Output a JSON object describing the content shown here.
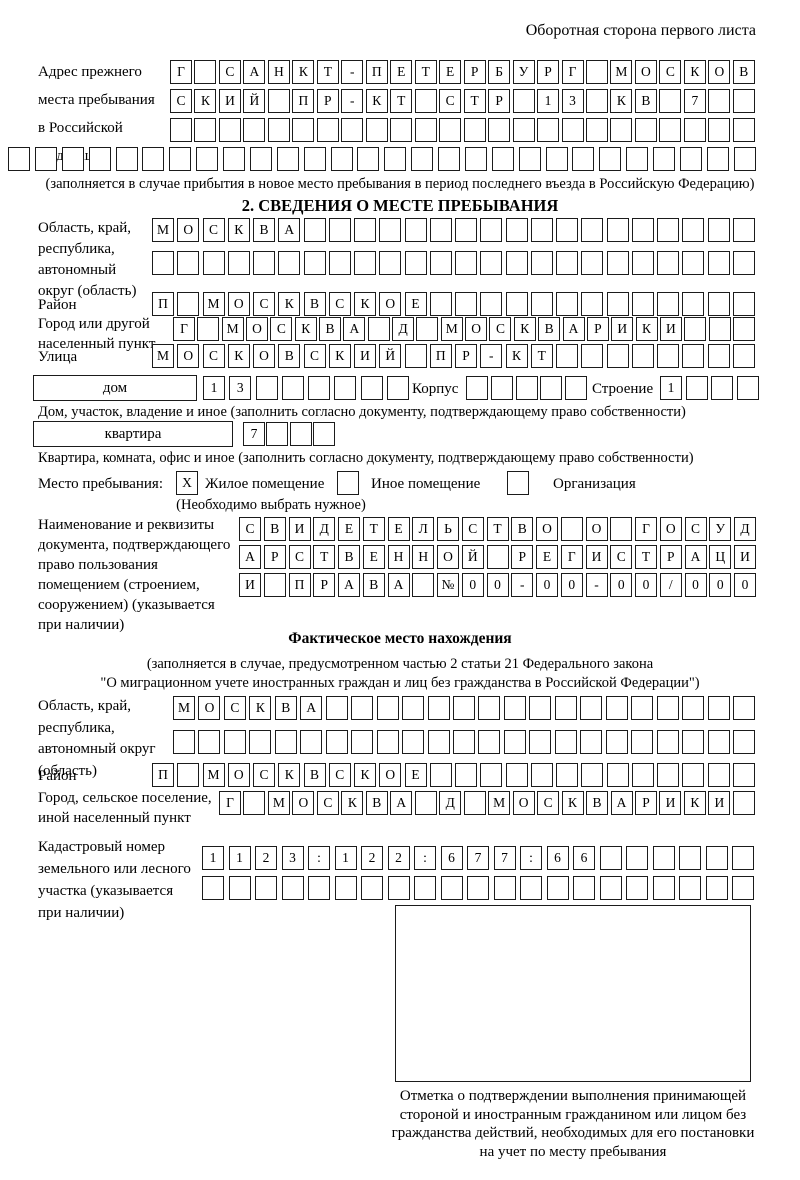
{
  "page_title": "Оборотная сторона первого листа",
  "prev_address": {
    "label_lines": [
      "Адрес прежнего",
      "места пребывания",
      "в Российской",
      "Федерации"
    ],
    "rows": [
      [
        "Г",
        "",
        "С",
        "А",
        "Н",
        "К",
        "Т",
        "-",
        "П",
        "Е",
        "Т",
        "Е",
        "Р",
        "Б",
        "У",
        "Р",
        "Г",
        "",
        "М",
        "О",
        "С",
        "К",
        "О",
        "В"
      ],
      [
        "С",
        "К",
        "И",
        "Й",
        "",
        "П",
        "Р",
        "-",
        "К",
        "Т",
        "",
        "С",
        "Т",
        "Р",
        "",
        "1",
        "3",
        "",
        "К",
        "В",
        "",
        "7",
        "",
        ""
      ],
      [
        "",
        "",
        "",
        "",
        "",
        "",
        "",
        "",
        "",
        "",
        "",
        "",
        "",
        "",
        "",
        "",
        "",
        "",
        "",
        "",
        "",
        "",
        "",
        ""
      ],
      [
        "",
        "",
        "",
        "",
        "",
        "",
        "",
        "",
        "",
        "",
        "",
        "",
        "",
        "",
        "",
        "",
        "",
        "",
        "",
        "",
        "",
        "",
        "",
        "",
        "",
        "",
        "",
        ""
      ]
    ],
    "note": "(заполняется в случае прибытия в новое место пребывания в период последнего въезда в Российскую Федерацию)"
  },
  "section2": {
    "title": "2. СВЕДЕНИЯ О МЕСТЕ ПРЕБЫВАНИЯ",
    "region": {
      "label_lines": [
        "Область, край,",
        "республика,",
        "автономный",
        "округ (область)"
      ],
      "rows": [
        [
          "М",
          "О",
          "С",
          "К",
          "В",
          "А",
          "",
          "",
          "",
          "",
          "",
          "",
          "",
          "",
          "",
          "",
          "",
          "",
          "",
          "",
          "",
          "",
          "",
          ""
        ],
        [
          "",
          "",
          "",
          "",
          "",
          "",
          "",
          "",
          "",
          "",
          "",
          "",
          "",
          "",
          "",
          "",
          "",
          "",
          "",
          "",
          "",
          "",
          "",
          ""
        ]
      ]
    },
    "district": {
      "label": "Район",
      "row": [
        "П",
        "",
        "М",
        "О",
        "С",
        "К",
        "В",
        "С",
        "К",
        "О",
        "Е",
        "",
        "",
        "",
        "",
        "",
        "",
        "",
        "",
        "",
        "",
        "",
        "",
        ""
      ]
    },
    "city": {
      "label_lines": [
        "Город или другой",
        "населенный пункт"
      ],
      "row": [
        "Г",
        "",
        "М",
        "О",
        "С",
        "К",
        "В",
        "А",
        "",
        "Д",
        "",
        "М",
        "О",
        "С",
        "К",
        "В",
        "А",
        "Р",
        "И",
        "К",
        "И",
        "",
        "",
        ""
      ]
    },
    "street": {
      "label": "Улица",
      "row": [
        "М",
        "О",
        "С",
        "К",
        "О",
        "В",
        "С",
        "К",
        "И",
        "Й",
        "",
        "П",
        "Р",
        "-",
        "К",
        "Т",
        "",
        "",
        "",
        "",
        "",
        "",
        "",
        ""
      ]
    },
    "house": {
      "box_label": "дом",
      "cells": [
        "1",
        "3",
        "",
        "",
        "",
        "",
        "",
        ""
      ],
      "korpus_label": "Корпус",
      "korpus_cells": [
        "",
        "",
        "",
        "",
        ""
      ],
      "stroenie_label": "Строение",
      "stroenie_cells": [
        "1",
        "",
        "",
        ""
      ],
      "note": "Дом, участок, владение и иное (заполнить согласно документу, подтверждающему право собственности)"
    },
    "apartment": {
      "box_label": "квартира",
      "cells": [
        "7",
        "",
        "",
        ""
      ],
      "note": "Квартира, комната, офис и иное (заполнить согласно документу, подтверждающему право собственности)"
    },
    "stay": {
      "label": "Место пребывания:",
      "options": [
        {
          "mark": "X",
          "label": "Жилое помещение"
        },
        {
          "mark": "",
          "label": "Иное помещение"
        },
        {
          "mark": "",
          "label": "Организация"
        }
      ],
      "note": "(Необходимо выбрать нужное)"
    },
    "document": {
      "label_lines": [
        "Наименование и реквизиты",
        "документа, подтверждающего",
        "право пользования",
        "помещением (строением,",
        "сооружением) (указывается",
        "при наличии)"
      ],
      "rows": [
        [
          "С",
          "В",
          "И",
          "Д",
          "Е",
          "Т",
          "Е",
          "Л",
          "Ь",
          "С",
          "Т",
          "В",
          "О",
          "",
          "О",
          "",
          "Г",
          "О",
          "С",
          "У",
          "Д"
        ],
        [
          "А",
          "Р",
          "С",
          "Т",
          "В",
          "Е",
          "Н",
          "Н",
          "О",
          "Й",
          "",
          "Р",
          "Е",
          "Г",
          "И",
          "С",
          "Т",
          "Р",
          "А",
          "Ц",
          "И"
        ],
        [
          "И",
          "",
          "П",
          "Р",
          "А",
          "В",
          "А",
          "",
          "№",
          "0",
          "0",
          "-",
          "0",
          "0",
          "-",
          "0",
          "0",
          "/",
          "0",
          "0",
          "0"
        ]
      ]
    }
  },
  "actual_location": {
    "title": "Фактическое место нахождения",
    "note_lines": [
      "(заполняется в случае, предусмотренном частью 2 статьи 21 Федерального закона",
      "\"О миграционном учете иностранных граждан и лиц без гражданства в Российской Федерации\")"
    ],
    "region": {
      "label_lines": [
        "Область, край,",
        "республика,",
        "автономный округ",
        "(область)"
      ],
      "rows": [
        [
          "М",
          "О",
          "С",
          "К",
          "В",
          "А",
          "",
          "",
          "",
          "",
          "",
          "",
          "",
          "",
          "",
          "",
          "",
          "",
          "",
          "",
          "",
          "",
          ""
        ],
        [
          "",
          "",
          "",
          "",
          "",
          "",
          "",
          "",
          "",
          "",
          "",
          "",
          "",
          "",
          "",
          "",
          "",
          "",
          "",
          "",
          "",
          "",
          ""
        ]
      ]
    },
    "district": {
      "label": "Район",
      "row": [
        "П",
        "",
        "М",
        "О",
        "С",
        "К",
        "В",
        "С",
        "К",
        "О",
        "Е",
        "",
        "",
        "",
        "",
        "",
        "",
        "",
        "",
        "",
        "",
        "",
        "",
        ""
      ]
    },
    "city": {
      "label_lines": [
        "Город, сельское поселение,",
        "иной населенный пункт"
      ],
      "row": [
        "Г",
        "",
        "М",
        "О",
        "С",
        "К",
        "В",
        "А",
        "",
        "Д",
        "",
        "М",
        "О",
        "С",
        "К",
        "В",
        "А",
        "Р",
        "И",
        "К",
        "И",
        ""
      ]
    },
    "cadastral": {
      "label_lines": [
        "Кадастровый номер",
        "земельного или лесного",
        "участка (указывается",
        "при наличии)"
      ],
      "rows": [
        [
          "1",
          "1",
          "2",
          "3",
          ":",
          "1",
          "2",
          "2",
          ":",
          "6",
          "7",
          "7",
          ":",
          "6",
          "6",
          "",
          "",
          "",
          "",
          "",
          ""
        ],
        [
          "",
          "",
          "",
          "",
          "",
          "",
          "",
          "",
          "",
          "",
          "",
          "",
          "",
          "",
          "",
          "",
          "",
          "",
          "",
          "",
          ""
        ]
      ]
    },
    "stamp_note_lines": [
      "Отметка о подтверждении выполнения принимающей",
      "стороной и иностранным гражданином или лицом без",
      "гражданства действий, необходимых для его постановки",
      "на учет по месту пребывания"
    ]
  }
}
